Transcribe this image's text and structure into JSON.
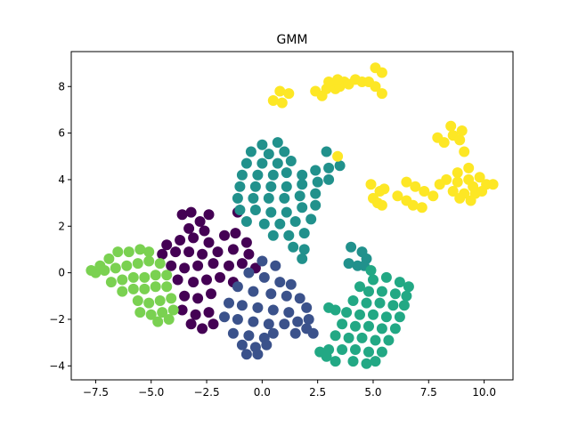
{
  "chart_data": {
    "type": "scatter",
    "title": "GMM",
    "xlabel": "",
    "ylabel": "",
    "xlim": [
      -8.6,
      11.3
    ],
    "ylim": [
      -4.6,
      9.5
    ],
    "x_ticks": [
      -7.5,
      -5.0,
      -2.5,
      0.0,
      2.5,
      5.0,
      7.5,
      10.0
    ],
    "x_tick_labels": [
      "−7.5",
      "−5.0",
      "−2.5",
      "0.0",
      "2.5",
      "5.0",
      "7.5",
      "10.0"
    ],
    "y_ticks": [
      -4,
      -2,
      0,
      2,
      4,
      6,
      8
    ],
    "y_tick_labels": [
      "−4",
      "−2",
      "0",
      "2",
      "4",
      "6",
      "8"
    ],
    "grid": false,
    "legend": "none",
    "series": [
      {
        "color": "#440154",
        "points": [
          [
            -3.6,
            2.5
          ],
          [
            -3.2,
            2.6
          ],
          [
            -2.8,
            2.2
          ],
          [
            -2.4,
            2.5
          ],
          [
            -3.3,
            1.9
          ],
          [
            -2.6,
            1.8
          ],
          [
            -4.3,
            1.2
          ],
          [
            -3.7,
            1.4
          ],
          [
            -3.1,
            1.5
          ],
          [
            -2.4,
            1.3
          ],
          [
            -1.7,
            1.6
          ],
          [
            -1.2,
            1.7
          ],
          [
            -0.7,
            1.3
          ],
          [
            -4.5,
            0.8
          ],
          [
            -3.9,
            0.9
          ],
          [
            -3.3,
            0.9
          ],
          [
            -2.7,
            0.8
          ],
          [
            -2.0,
            0.9
          ],
          [
            -1.3,
            1.0
          ],
          [
            -0.6,
            0.8
          ],
          [
            -0.3,
            0.2
          ],
          [
            -4.1,
            0.3
          ],
          [
            -3.5,
            0.2
          ],
          [
            -2.9,
            0.3
          ],
          [
            -2.2,
            0.4
          ],
          [
            -1.5,
            0.3
          ],
          [
            -0.9,
            0.4
          ],
          [
            -3.8,
            -0.3
          ],
          [
            -3.1,
            -0.4
          ],
          [
            -2.5,
            -0.3
          ],
          [
            -1.9,
            -0.2
          ],
          [
            -1.3,
            -0.4
          ],
          [
            -3.5,
            -1.0
          ],
          [
            -2.9,
            -1.1
          ],
          [
            -2.3,
            -0.9
          ],
          [
            -3.6,
            -1.6
          ],
          [
            -3.0,
            -1.8
          ],
          [
            -2.4,
            -1.7
          ],
          [
            -3.2,
            -2.2
          ],
          [
            -2.7,
            -2.4
          ],
          [
            -2.2,
            -2.2
          ],
          [
            -1.1,
            2.6
          ]
        ]
      },
      {
        "color": "#3b528b",
        "points": [
          [
            0.0,
            0.5
          ],
          [
            0.6,
            0.3
          ],
          [
            -0.6,
            0.0
          ],
          [
            0.1,
            -0.2
          ],
          [
            0.8,
            -0.4
          ],
          [
            1.3,
            -0.5
          ],
          [
            -1.1,
            -0.6
          ],
          [
            -0.4,
            -0.8
          ],
          [
            0.4,
            -0.9
          ],
          [
            1.1,
            -1.0
          ],
          [
            1.7,
            -1.1
          ],
          [
            2.0,
            -1.5
          ],
          [
            -1.5,
            -1.3
          ],
          [
            -0.9,
            -1.4
          ],
          [
            -0.2,
            -1.5
          ],
          [
            0.5,
            -1.6
          ],
          [
            1.2,
            -1.7
          ],
          [
            -1.7,
            -1.9
          ],
          [
            -1.1,
            -2.0
          ],
          [
            -0.4,
            -2.1
          ],
          [
            0.3,
            -2.2
          ],
          [
            1.0,
            -2.2
          ],
          [
            1.6,
            -2.1
          ],
          [
            2.1,
            -2.0
          ],
          [
            2.3,
            -2.6
          ],
          [
            2.0,
            -2.4
          ],
          [
            1.5,
            -2.6
          ],
          [
            -1.3,
            -2.6
          ],
          [
            -0.6,
            -2.7
          ],
          [
            0.1,
            -2.8
          ],
          [
            0.5,
            -2.6
          ],
          [
            -0.9,
            -3.1
          ],
          [
            -0.3,
            -3.2
          ],
          [
            0.2,
            -3.1
          ],
          [
            -0.7,
            -3.5
          ],
          [
            -0.2,
            -3.5
          ]
        ]
      },
      {
        "color": "#21918c",
        "points": [
          [
            0.0,
            5.5
          ],
          [
            0.7,
            5.6
          ],
          [
            -0.5,
            5.2
          ],
          [
            0.3,
            5.1
          ],
          [
            1.0,
            5.2
          ],
          [
            -0.7,
            4.7
          ],
          [
            0.0,
            4.7
          ],
          [
            0.7,
            4.7
          ],
          [
            1.3,
            4.8
          ],
          [
            -0.9,
            4.2
          ],
          [
            -0.2,
            4.2
          ],
          [
            0.5,
            4.2
          ],
          [
            1.1,
            4.3
          ],
          [
            1.8,
            4.2
          ],
          [
            2.4,
            4.4
          ],
          [
            3.0,
            4.5
          ],
          [
            3.5,
            4.6
          ],
          [
            -1.0,
            3.7
          ],
          [
            -0.3,
            3.7
          ],
          [
            0.4,
            3.7
          ],
          [
            1.1,
            3.7
          ],
          [
            1.8,
            3.8
          ],
          [
            2.5,
            3.9
          ],
          [
            3.0,
            4.0
          ],
          [
            -1.1,
            3.2
          ],
          [
            -0.4,
            3.2
          ],
          [
            0.3,
            3.2
          ],
          [
            1.0,
            3.2
          ],
          [
            1.7,
            3.3
          ],
          [
            2.4,
            3.4
          ],
          [
            -1.0,
            2.7
          ],
          [
            -0.3,
            2.7
          ],
          [
            0.4,
            2.6
          ],
          [
            1.1,
            2.6
          ],
          [
            1.8,
            2.8
          ],
          [
            2.4,
            2.9
          ],
          [
            -0.7,
            2.2
          ],
          [
            0.1,
            2.1
          ],
          [
            0.8,
            2.1
          ],
          [
            1.5,
            2.2
          ],
          [
            2.2,
            2.3
          ],
          [
            0.5,
            1.6
          ],
          [
            1.2,
            1.6
          ],
          [
            1.9,
            1.7
          ],
          [
            1.4,
            1.1
          ],
          [
            1.9,
            1.0
          ],
          [
            1.8,
            0.6
          ],
          [
            2.9,
            5.2
          ],
          [
            4.0,
            1.1
          ],
          [
            4.5,
            0.9
          ],
          [
            4.7,
            0.6
          ],
          [
            4.3,
            0.3
          ],
          [
            3.9,
            0.4
          ],
          [
            4.6,
            0.3
          ]
        ]
      },
      {
        "color": "#22a884",
        "points": [
          [
            5.0,
            -0.3
          ],
          [
            5.6,
            -0.2
          ],
          [
            6.2,
            -0.4
          ],
          [
            6.6,
            -0.6
          ],
          [
            4.4,
            -0.6
          ],
          [
            4.8,
            -0.8
          ],
          [
            5.4,
            -0.8
          ],
          [
            6.0,
            -0.9
          ],
          [
            6.5,
            -1.0
          ],
          [
            4.1,
            -1.2
          ],
          [
            4.7,
            -1.3
          ],
          [
            5.3,
            -1.3
          ],
          [
            5.9,
            -1.4
          ],
          [
            6.4,
            -1.4
          ],
          [
            3.8,
            -1.7
          ],
          [
            4.4,
            -1.8
          ],
          [
            5.0,
            -1.8
          ],
          [
            5.6,
            -1.9
          ],
          [
            6.2,
            -1.9
          ],
          [
            3.6,
            -2.2
          ],
          [
            4.2,
            -2.3
          ],
          [
            4.8,
            -2.3
          ],
          [
            5.4,
            -2.4
          ],
          [
            6.0,
            -2.4
          ],
          [
            3.3,
            -2.7
          ],
          [
            3.9,
            -2.8
          ],
          [
            4.5,
            -2.8
          ],
          [
            5.1,
            -2.9
          ],
          [
            5.7,
            -2.9
          ],
          [
            3.0,
            -3.3
          ],
          [
            3.6,
            -3.3
          ],
          [
            4.2,
            -3.3
          ],
          [
            4.8,
            -3.4
          ],
          [
            5.4,
            -3.4
          ],
          [
            2.6,
            -3.4
          ],
          [
            2.9,
            -3.6
          ],
          [
            3.3,
            -3.8
          ],
          [
            4.1,
            -3.8
          ],
          [
            4.7,
            -3.9
          ],
          [
            5.1,
            -3.8
          ],
          [
            3.0,
            -1.5
          ],
          [
            3.3,
            -1.6
          ],
          [
            4.9,
            0.1
          ]
        ]
      },
      {
        "color": "#7ad151",
        "points": [
          [
            -7.7,
            0.1
          ],
          [
            -7.5,
            0.0
          ],
          [
            -7.3,
            0.3
          ],
          [
            -6.9,
            0.6
          ],
          [
            -6.5,
            0.9
          ],
          [
            -6.0,
            0.9
          ],
          [
            -5.5,
            1.0
          ],
          [
            -5.1,
            0.9
          ],
          [
            -7.1,
            0.1
          ],
          [
            -6.6,
            0.2
          ],
          [
            -6.1,
            0.3
          ],
          [
            -5.6,
            0.4
          ],
          [
            -5.1,
            0.5
          ],
          [
            -4.6,
            0.4
          ],
          [
            -6.8,
            -0.4
          ],
          [
            -6.3,
            -0.3
          ],
          [
            -5.8,
            -0.2
          ],
          [
            -5.3,
            -0.2
          ],
          [
            -4.8,
            -0.1
          ],
          [
            -4.3,
            -0.1
          ],
          [
            -6.3,
            -0.8
          ],
          [
            -5.8,
            -0.7
          ],
          [
            -5.3,
            -0.7
          ],
          [
            -4.8,
            -0.6
          ],
          [
            -4.3,
            -0.6
          ],
          [
            -5.6,
            -1.2
          ],
          [
            -5.1,
            -1.3
          ],
          [
            -4.6,
            -1.2
          ],
          [
            -4.1,
            -1.1
          ],
          [
            -5.5,
            -1.7
          ],
          [
            -5.0,
            -1.8
          ],
          [
            -4.5,
            -1.7
          ],
          [
            -4.0,
            -1.6
          ],
          [
            -4.7,
            -2.1
          ],
          [
            -4.2,
            -2.0
          ]
        ]
      },
      {
        "color": "#fde725",
        "points": [
          [
            0.5,
            7.4
          ],
          [
            0.9,
            7.3
          ],
          [
            0.8,
            7.8
          ],
          [
            1.2,
            7.7
          ],
          [
            2.4,
            7.8
          ],
          [
            2.7,
            7.6
          ],
          [
            2.9,
            7.9
          ],
          [
            3.1,
            8.1
          ],
          [
            3.3,
            7.9
          ],
          [
            3.5,
            8.0
          ],
          [
            3.7,
            8.2
          ],
          [
            3.9,
            8.1
          ],
          [
            4.2,
            8.3
          ],
          [
            4.5,
            8.2
          ],
          [
            4.8,
            8.2
          ],
          [
            3.0,
            8.2
          ],
          [
            3.4,
            8.3
          ],
          [
            5.1,
            8.8
          ],
          [
            5.4,
            8.6
          ],
          [
            5.1,
            8.0
          ],
          [
            5.4,
            7.7
          ],
          [
            3.4,
            5.0
          ],
          [
            4.9,
            3.8
          ],
          [
            5.3,
            3.5
          ],
          [
            5.0,
            3.2
          ],
          [
            5.2,
            3.0
          ],
          [
            5.5,
            3.6
          ],
          [
            5.4,
            2.9
          ],
          [
            6.1,
            3.3
          ],
          [
            6.5,
            3.1
          ],
          [
            6.8,
            2.9
          ],
          [
            7.2,
            2.8
          ],
          [
            6.5,
            3.9
          ],
          [
            6.9,
            3.7
          ],
          [
            7.3,
            3.5
          ],
          [
            7.7,
            3.3
          ],
          [
            7.9,
            5.8
          ],
          [
            8.2,
            5.6
          ],
          [
            8.5,
            6.3
          ],
          [
            8.6,
            5.9
          ],
          [
            8.9,
            5.7
          ],
          [
            9.0,
            6.1
          ],
          [
            9.1,
            5.2
          ],
          [
            8.8,
            4.3
          ],
          [
            9.3,
            4.5
          ],
          [
            8.3,
            4.0
          ],
          [
            8.8,
            3.9
          ],
          [
            9.3,
            4.0
          ],
          [
            9.8,
            4.1
          ],
          [
            10.1,
            3.8
          ],
          [
            10.4,
            3.8
          ],
          [
            8.6,
            3.5
          ],
          [
            9.1,
            3.4
          ],
          [
            9.6,
            3.4
          ],
          [
            9.9,
            3.5
          ],
          [
            8.9,
            3.2
          ],
          [
            9.4,
            3.1
          ],
          [
            8.0,
            3.8
          ],
          [
            9.5,
            3.7
          ]
        ]
      }
    ]
  }
}
